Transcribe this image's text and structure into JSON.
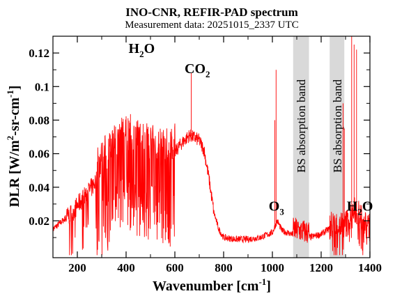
{
  "chart_data": {
    "type": "line",
    "title": "INO-CNR, REFIR-PAD spectrum",
    "subtitle": "Measurement data: 20251015_2337 UTC",
    "xlabel": "Wavenumber [cm",
    "xlabel_sup": "-1",
    "xlabel_end": "]",
    "ylabel": "DLR [W/m",
    "ylabel_sup1": "2",
    "ylabel_mid": "-sr-cm",
    "ylabel_sup2": "-1",
    "ylabel_end": "]",
    "xlim": [
      100,
      1400
    ],
    "ylim": [
      -0.002,
      0.13
    ],
    "xticks": [
      200,
      400,
      600,
      800,
      1000,
      1200,
      1400
    ],
    "yticks": [
      0.02,
      0.04,
      0.06,
      0.08,
      0.1,
      0.12
    ],
    "ytick_labels": [
      "0.02",
      "0.04",
      "0.06",
      "0.08",
      "0.1",
      "0.12"
    ],
    "grid": false,
    "line_color": "#ff0000",
    "band_color": "#d9d9d9",
    "bands": [
      {
        "x0": 1085,
        "x1": 1150,
        "label": "BS absorption band"
      },
      {
        "x0": 1235,
        "x1": 1295,
        "label": "BS absorption band"
      }
    ],
    "annotations": [
      {
        "name": "h2o-label-left",
        "text": "H",
        "sub": "2",
        "end": "O",
        "x": 450,
        "y": 0.12
      },
      {
        "name": "co2-label",
        "text": "CO",
        "sub": "2",
        "end": "",
        "x": 680,
        "y": 0.108
      },
      {
        "name": "o3-label",
        "text": "O",
        "sub": "3",
        "end": "",
        "x": 1025,
        "y": 0.026
      },
      {
        "name": "h2o-label-right",
        "text": "H",
        "sub": "2",
        "end": "O",
        "x": 1345,
        "y": 0.026
      }
    ],
    "series": [
      {
        "envelope": [
          [
            100,
            0.015
          ],
          [
            140,
            0.02
          ],
          [
            180,
            0.025
          ],
          [
            220,
            0.033
          ],
          [
            260,
            0.04
          ],
          [
            300,
            0.05
          ],
          [
            340,
            0.058
          ],
          [
            380,
            0.063
          ],
          [
            420,
            0.065
          ],
          [
            460,
            0.062
          ],
          [
            500,
            0.06
          ],
          [
            540,
            0.058
          ],
          [
            580,
            0.056
          ],
          [
            620,
            0.065
          ],
          [
            660,
            0.071
          ],
          [
            700,
            0.068
          ],
          [
            720,
            0.062
          ],
          [
            740,
            0.045
          ],
          [
            760,
            0.025
          ],
          [
            780,
            0.015
          ],
          [
            800,
            0.01
          ],
          [
            850,
            0.009
          ],
          [
            900,
            0.009
          ],
          [
            950,
            0.01
          ],
          [
            1000,
            0.013
          ],
          [
            1020,
            0.02
          ],
          [
            1040,
            0.014
          ],
          [
            1080,
            0.012
          ],
          [
            1150,
            0.01
          ],
          [
            1200,
            0.012
          ],
          [
            1230,
            0.015
          ],
          [
            1300,
            0.016
          ],
          [
            1320,
            0.02
          ],
          [
            1340,
            0.025
          ],
          [
            1360,
            0.02
          ],
          [
            1400,
            0.014
          ]
        ],
        "spikes": [
          [
            1015,
            0.11
          ],
          [
            1325,
            0.13
          ],
          [
            1335,
            0.125
          ],
          [
            1345,
            0.122
          ],
          [
            1290,
            0.09
          ],
          [
            1295,
            0.075
          ],
          [
            667,
            0.108
          ],
          [
            1010,
            0.08
          ]
        ]
      }
    ]
  }
}
